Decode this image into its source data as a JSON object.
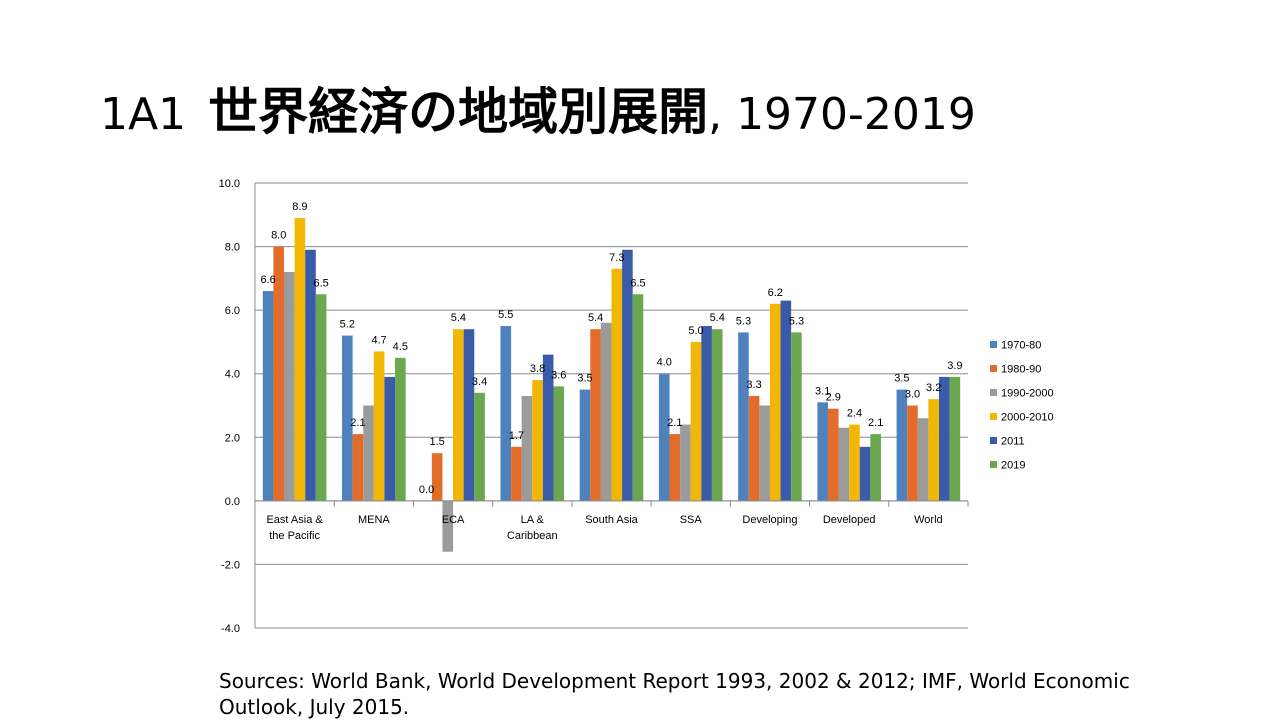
{
  "slide": {
    "title_code": "1A1",
    "title_jp": "世界経済の地域別展開",
    "title_years": ", 1970-2019",
    "sources": "Sources: World Bank, World Development Report 1993, 2002 & 2012; IMF, World Economic Outlook, July 2015."
  },
  "chart_data": {
    "type": "bar",
    "categories": [
      [
        "East Asia &",
        "the Pacific"
      ],
      [
        "MENA"
      ],
      [
        "ECA"
      ],
      [
        "LA &",
        "Caribbean"
      ],
      [
        "South Asia"
      ],
      [
        "SSA"
      ],
      [
        "Developing"
      ],
      [
        "Developed"
      ],
      [
        "World"
      ]
    ],
    "series": [
      {
        "name": "1970-80",
        "color": "#4f81bd",
        "values": [
          6.6,
          5.2,
          0.0,
          5.5,
          3.5,
          4.0,
          5.3,
          3.1,
          3.5
        ],
        "labels": [
          "6.6",
          "5.2",
          "0.0",
          "5.5",
          "3.5",
          "4.0",
          "5.3",
          "3.1",
          "3.5"
        ]
      },
      {
        "name": "1980-90",
        "color": "#e46c2a",
        "values": [
          8.0,
          2.1,
          1.5,
          1.7,
          5.4,
          2.1,
          3.3,
          2.9,
          3.0
        ],
        "labels": [
          "8.0",
          "2.1",
          "1.5",
          "1.7",
          "5.4",
          "2.1",
          "3.3",
          "2.9",
          "3.0"
        ]
      },
      {
        "name": "1990-2000",
        "color": "#9b9b9b",
        "values": [
          7.2,
          3.0,
          -1.6,
          3.3,
          5.6,
          2.4,
          3.0,
          2.3,
          2.6
        ],
        "labels": [
          "",
          "",
          "",
          "",
          "",
          "",
          "",
          "",
          ""
        ]
      },
      {
        "name": "2000-2010",
        "color": "#f2b705",
        "values": [
          8.9,
          4.7,
          5.4,
          3.8,
          7.3,
          5.0,
          6.2,
          2.4,
          3.2
        ],
        "labels": [
          "8.9",
          "4.7",
          "5.4",
          "3.8",
          "7.3",
          "5.0",
          "6.2",
          "2.4",
          "3.2"
        ]
      },
      {
        "name": "2011",
        "color": "#3a5ba9",
        "values": [
          7.9,
          3.9,
          5.4,
          4.6,
          7.9,
          5.5,
          6.3,
          1.7,
          3.9
        ],
        "labels": [
          "",
          "",
          "",
          "",
          "",
          "",
          "",
          "",
          ""
        ]
      },
      {
        "name": "2019",
        "color": "#6aa84f",
        "values": [
          6.5,
          4.5,
          3.4,
          3.6,
          6.5,
          5.4,
          5.3,
          2.1,
          3.9
        ],
        "labels": [
          "6.5",
          "4.5",
          "3.4",
          "3.6",
          "6.5",
          "5.4",
          "5.3",
          "2.1",
          "3.9"
        ]
      }
    ],
    "ylim": [
      -4.0,
      10.0
    ],
    "yticks": [
      "-4.0",
      "-2.0",
      "0.0",
      "2.0",
      "4.0",
      "6.0",
      "8.0",
      "10.0"
    ],
    "ytick_values": [
      -4,
      -2,
      0,
      2,
      4,
      6,
      8,
      10
    ],
    "grid": true,
    "legend_position": "right"
  }
}
